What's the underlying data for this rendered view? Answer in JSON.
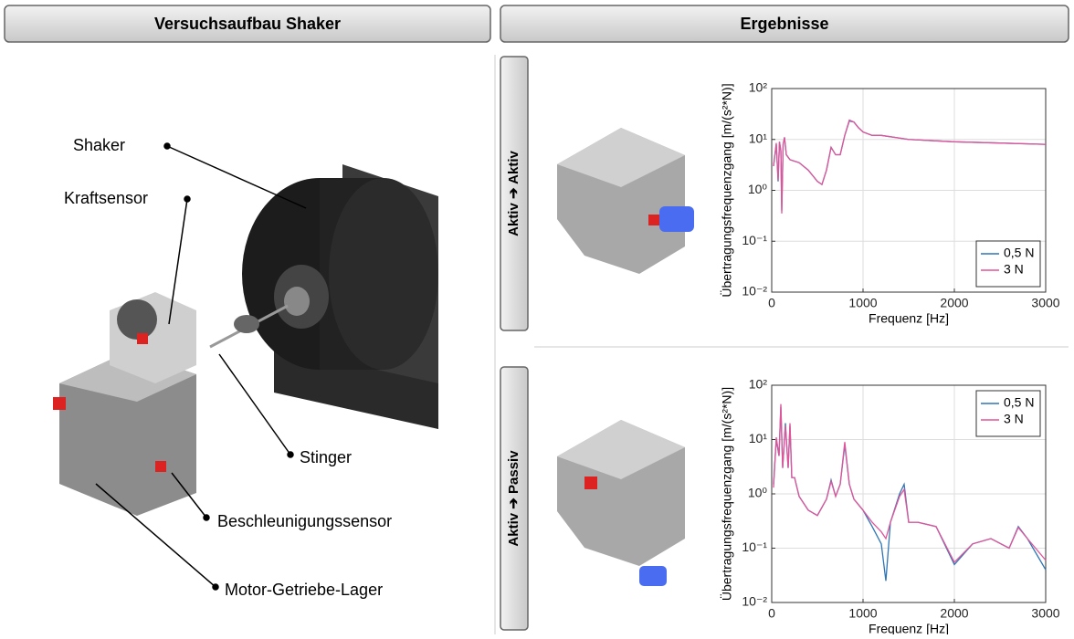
{
  "headers": [
    "Versuchsaufbau Shaker",
    "Ergebnisse"
  ],
  "setup_labels": [
    "Shaker",
    "Kraftsensor",
    "Stinger",
    "Beschleunigungssensor",
    "Motor-Getriebe-Lager"
  ],
  "row_labels": [
    "Aktiv ➔ Aktiv",
    "Aktiv ➔ Passiv"
  ],
  "chart_data": [
    {
      "type": "line",
      "xlabel": "Frequenz [Hz]",
      "ylabel": "Übertragungsfrequenzgang [m/(s²*N)]",
      "log_y": true,
      "grid": true,
      "legend": "lower right",
      "xlim": [
        0,
        3000
      ],
      "ylim": [
        0.01,
        100
      ],
      "xticks": [
        0,
        1000,
        2000,
        3000
      ],
      "yticks": [
        {
          "value": 0.01,
          "label": "10⁻²"
        },
        {
          "value": 0.1,
          "label": "10⁻¹"
        },
        {
          "value": 1,
          "label": "10⁰"
        },
        {
          "value": 10,
          "label": "10¹"
        },
        {
          "value": 100,
          "label": "10²"
        }
      ],
      "x": [
        20,
        50,
        70,
        85,
        100,
        110,
        125,
        140,
        160,
        200,
        300,
        400,
        500,
        550,
        600,
        650,
        700,
        750,
        800,
        850,
        900,
        950,
        1000,
        1100,
        1200,
        1500,
        2000,
        2500,
        3000
      ],
      "series": [
        {
          "name": "0,5 N",
          "color": "#2e75b6",
          "values": [
            3,
            8,
            1.5,
            9,
            6,
            0.4,
            8,
            11,
            5,
            4,
            3.5,
            2.5,
            1.5,
            1.3,
            2.5,
            7,
            5,
            5,
            12,
            23,
            22,
            17,
            14,
            12,
            12,
            10,
            9,
            8.5,
            8
          ]
        },
        {
          "name": "3 N",
          "color": "#e0559a",
          "values": [
            3,
            8.5,
            1.6,
            9,
            6,
            0.35,
            8,
            11,
            5,
            4,
            3.5,
            2.5,
            1.5,
            1.3,
            2.5,
            7,
            5,
            5,
            12,
            24,
            22,
            17,
            14,
            12,
            12,
            10,
            9,
            8.5,
            8
          ]
        }
      ]
    },
    {
      "type": "line",
      "xlabel": "Frequenz [Hz]",
      "ylabel": "Übertragungsfrequenzgang [m/(s²*N)]",
      "log_y": true,
      "grid": true,
      "legend": "upper right",
      "xlim": [
        0,
        3000
      ],
      "ylim": [
        0.01,
        100
      ],
      "xticks": [
        0,
        1000,
        2000,
        3000
      ],
      "yticks": [
        {
          "value": 0.01,
          "label": "10⁻²"
        },
        {
          "value": 0.1,
          "label": "10⁻¹"
        },
        {
          "value": 1,
          "label": "10⁰"
        },
        {
          "value": 10,
          "label": "10¹"
        },
        {
          "value": 100,
          "label": "10²"
        }
      ],
      "x": [
        20,
        50,
        80,
        100,
        120,
        150,
        180,
        200,
        220,
        250,
        300,
        400,
        500,
        600,
        650,
        700,
        750,
        800,
        850,
        900,
        1000,
        1100,
        1200,
        1250,
        1300,
        1400,
        1450,
        1500,
        1600,
        1800,
        2000,
        2200,
        2400,
        2600,
        2700,
        2800,
        3000
      ],
      "series": [
        {
          "name": "0,5 N",
          "color": "#2e75b6",
          "values": [
            1.5,
            10,
            5,
            40,
            3,
            20,
            3,
            18,
            2,
            2,
            0.9,
            0.5,
            0.4,
            0.8,
            1.8,
            0.9,
            1.5,
            8,
            1.5,
            0.8,
            0.5,
            0.25,
            0.12,
            0.025,
            0.3,
            1,
            1.5,
            0.3,
            0.3,
            0.25,
            0.05,
            0.12,
            0.15,
            0.1,
            0.25,
            0.15,
            0.04
          ]
        },
        {
          "name": "3 N",
          "color": "#e0559a",
          "values": [
            1.3,
            11,
            5,
            45,
            3,
            18,
            3,
            20,
            2,
            2,
            0.9,
            0.5,
            0.4,
            0.8,
            1.7,
            0.9,
            1.5,
            9,
            1.5,
            0.8,
            0.5,
            0.3,
            0.2,
            0.15,
            0.3,
            0.9,
            1.2,
            0.3,
            0.3,
            0.25,
            0.055,
            0.12,
            0.15,
            0.1,
            0.24,
            0.15,
            0.06
          ]
        }
      ]
    }
  ]
}
